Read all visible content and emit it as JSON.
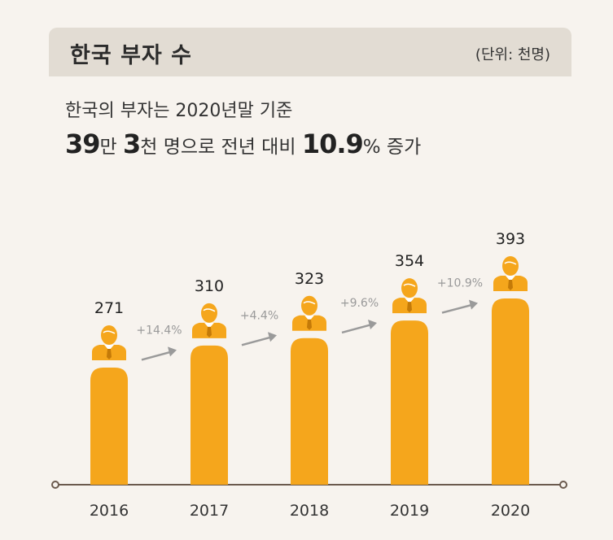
{
  "header": {
    "title": "한국 부자 수",
    "unit": "(단위: 천명)"
  },
  "headline": {
    "line1": "한국의 부자는 2020년말 기준",
    "line2_num1": "39",
    "line2_txt1": "만 ",
    "line2_num2": "3",
    "line2_txt2": "천 명으로 전년 대비 ",
    "line2_num3": "10.9",
    "line2_txt3": "% 증가"
  },
  "colors": {
    "bar": "#f5a61c",
    "arrow": "#9a9a9a",
    "axis": "#6b5a4e",
    "label": "#222222"
  },
  "chart_data": {
    "type": "bar",
    "categories": [
      "2016",
      "2017",
      "2018",
      "2019",
      "2020"
    ],
    "values": [
      271,
      310,
      323,
      354,
      393
    ],
    "growth_labels": [
      "+14.4%",
      "+4.4%",
      "+9.6%",
      "+10.9%"
    ],
    "icon": "person-icon",
    "grid": false
  }
}
